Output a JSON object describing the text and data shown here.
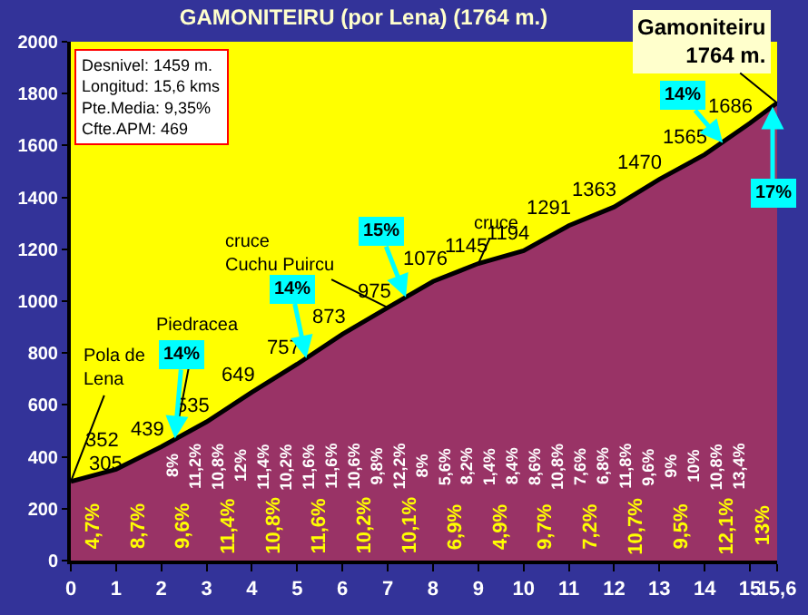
{
  "chart_data": {
    "type": "area",
    "title": "GAMONITEIRU (por Lena) (1764 m.)",
    "x": [
      0,
      1,
      2,
      3,
      4,
      5,
      6,
      7,
      8,
      9,
      10,
      11,
      12,
      13,
      14,
      15,
      15.6
    ],
    "series": [
      {
        "color": "#993366",
        "values": [
          305,
          352,
          439,
          535,
          649,
          757,
          873,
          975,
          1076,
          1145,
          1194,
          1291,
          1363,
          1470,
          1565,
          1686,
          1764
        ],
        "value_labels": [
          "305",
          "352",
          "439",
          "535",
          "649",
          "757",
          "873",
          "975",
          "1076",
          "1145",
          "1194",
          "1291",
          "1363",
          "1470",
          "1565",
          "1686",
          null
        ]
      }
    ],
    "xlim": [
      0,
      15.6
    ],
    "xticks": [
      0,
      1,
      2,
      3,
      4,
      5,
      6,
      7,
      8,
      9,
      10,
      11,
      12,
      13,
      14,
      15,
      {
        "value": 15.6,
        "label": "15,6"
      }
    ],
    "ylim": [
      0,
      2000
    ],
    "yticks": [
      0,
      200,
      400,
      600,
      800,
      1000,
      1200,
      1400,
      1600,
      1800,
      2000
    ],
    "grid": false,
    "annotations": [
      "Desnivel: 1459 m.",
      "Longitud: 15,6 kms",
      "Pte.Media: 9,35%",
      "Cfte.APM: 469",
      {
        "text": "Pola de\nLena",
        "x": 0,
        "y": 305
      },
      {
        "text": "Piedracea",
        "x": 2.3,
        "y": 470
      },
      {
        "text": "cruce\nCuchu Puircu",
        "x": 7,
        "y": 975
      },
      {
        "text": "cruce",
        "x": 9,
        "y": 1145
      },
      {
        "text": "Gamoniteiru\n1764 m.",
        "x": 15.6,
        "y": 1764
      },
      {
        "text": "14%",
        "x": 2.3,
        "y": 470
      },
      {
        "text": "14%",
        "x": 5.2,
        "y": 780
      },
      {
        "text": "15%",
        "x": 7.4,
        "y": 1015
      },
      {
        "text": "14%",
        "x": 14.4,
        "y": 1610
      },
      {
        "text": "17%",
        "x": 15.5,
        "y": 1750
      },
      "4,7%",
      "8,7%",
      "9,6%",
      "11,4%",
      "10,8%",
      "11,6%",
      "10,2%",
      "10,1%",
      "6,9%",
      "4,9%",
      "9,7%",
      "7,2%",
      "10,7%",
      "9,5%",
      "12,1%",
      "13%",
      "8%",
      "11,2%",
      "10,8%",
      "12%",
      "11,4%",
      "10,2%",
      "11,6%",
      "11,6%",
      "10,6%",
      "9,8%",
      "12,2%",
      "8%",
      "5,6%",
      "8,2%",
      "1,4%",
      "8,4%",
      "8,6%",
      "10,8%",
      "7,6%",
      "6,8%",
      "11,8%",
      "9,6%",
      "9%",
      "10%",
      "10,8%",
      "13,4%"
    ]
  }
}
